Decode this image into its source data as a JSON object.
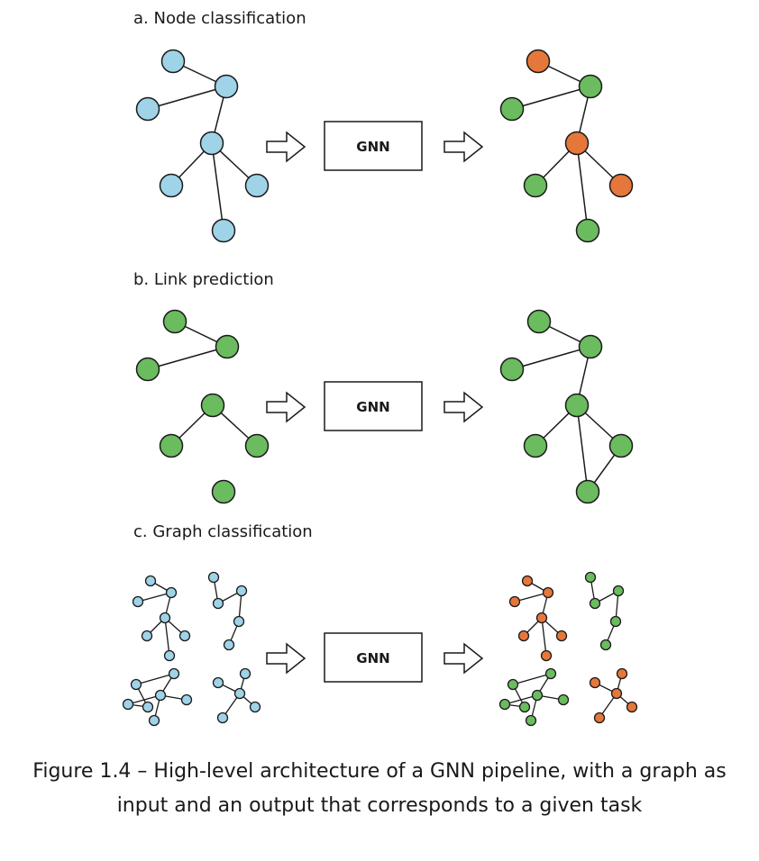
{
  "sections": [
    {
      "label": "a.  Node classification",
      "box_label": "GNN"
    },
    {
      "label": "b.  Link prediction",
      "box_label": "GNN"
    },
    {
      "label": "c.  Graph classification",
      "box_label": "GNN"
    }
  ],
  "caption": {
    "line1": "Figure 1.4 – High-level architecture of a GNN pipeline, with a graph as",
    "line2": "input and an output that corresponds to a given task"
  },
  "colors": {
    "input_node": "#9fd3e8",
    "class_a": "#6bbb5f",
    "class_b": "#e6773a",
    "stroke": "#1a1a1a"
  }
}
